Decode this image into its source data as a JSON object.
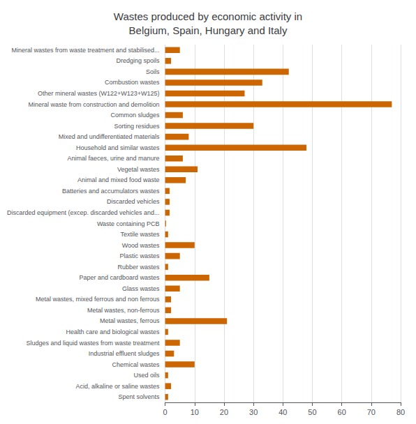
{
  "chart_data": {
    "type": "bar",
    "orientation": "horizontal",
    "title": "Wastes produced by economic activity in\nBelgium, Spain, Hungary and Italy",
    "categories": [
      "Mineral wastes from waste treatment and stabilised...",
      "Dredging spoils",
      "Soils",
      "Combustion wastes",
      "Other mineral wastes (W122+W123+W125)",
      "Mineral waste from construction and demolition",
      "Common sludges",
      "Sorting residues",
      "Mixed and undifferentiated materials",
      "Household and similar wastes",
      "Animal faeces, urine and manure",
      "Vegetal wastes",
      "Animal and mixed food waste",
      "Batteries and accumulators wastes",
      "Discarded vehicles",
      "Discarded equipment (excep. discarded vehicles and...",
      "Waste containing PCB",
      "Textile wastes",
      "Wood wastes",
      "Plastic wastes",
      "Rubber wastes",
      "Paper and cardboard wastes",
      "Glass wastes",
      "Metal wastes, mixed ferrous and non ferrous",
      "Metal wastes, non-ferrous",
      "Metal wastes, ferrous",
      "Health care and biological wastes",
      "Sludges and liquid wastes from waste treatment",
      "Industrial effluent sludges",
      "Chemical wastes",
      "Used oils",
      "Acid, alkaline or saline wastes",
      "Spent solvents"
    ],
    "values": [
      5,
      2,
      42,
      33,
      27,
      77,
      6,
      30,
      8,
      48,
      6,
      11,
      7,
      1.5,
      1.5,
      1.5,
      0.3,
      1,
      10,
      5,
      1,
      15,
      5,
      2,
      2,
      21,
      1,
      5,
      3,
      10,
      1,
      2,
      1
    ],
    "color": "#CC6600",
    "xlim": [
      0,
      80
    ],
    "xticks": [
      0,
      10,
      20,
      30,
      40,
      50,
      60,
      70,
      80
    ],
    "grid": true
  }
}
